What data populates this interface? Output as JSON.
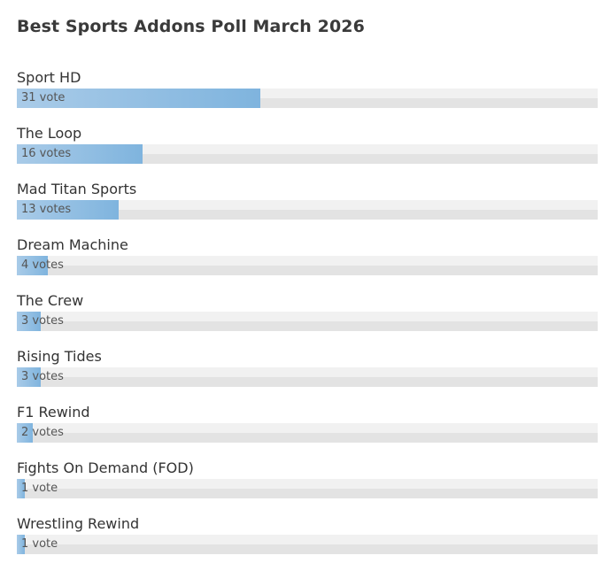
{
  "poll": {
    "title": "Best Sports Addons Poll March 2026",
    "options": [
      {
        "label": "Sport HD",
        "votes": 31,
        "votes_label": "31 vote"
      },
      {
        "label": "The Loop",
        "votes": 16,
        "votes_label": "16 votes"
      },
      {
        "label": "Mad Titan Sports",
        "votes": 13,
        "votes_label": "13 votes"
      },
      {
        "label": "Dream Machine",
        "votes": 4,
        "votes_label": "4 votes"
      },
      {
        "label": "The Crew",
        "votes": 3,
        "votes_label": "3 votes"
      },
      {
        "label": "Rising Tides",
        "votes": 3,
        "votes_label": "3 votes"
      },
      {
        "label": "F1 Rewind",
        "votes": 2,
        "votes_label": "2 votes"
      },
      {
        "label": "Fights On Demand (FOD)",
        "votes": 1,
        "votes_label": "1 vote"
      },
      {
        "label": "Wrestling Rewind",
        "votes": 1,
        "votes_label": "1 vote"
      }
    ]
  },
  "colors": {
    "bar_fill_start": "#a9cbe8",
    "bar_fill_end": "#7fb4de",
    "bar_track_top": "#f1f1f1",
    "bar_track_bottom": "#e3e3e3"
  }
}
